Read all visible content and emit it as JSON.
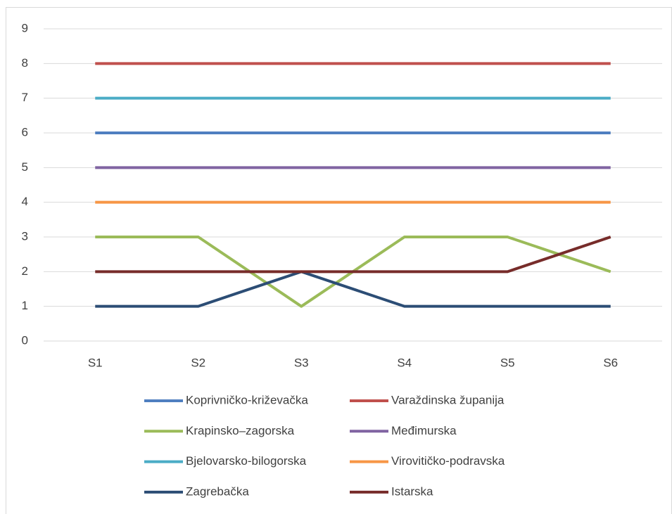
{
  "chart_data": {
    "type": "line",
    "categories": [
      "S1",
      "S2",
      "S3",
      "S4",
      "S5",
      "S6"
    ],
    "series": [
      {
        "name": "Koprivničko-križevačka",
        "color": "#4f7fc0",
        "values": [
          6,
          6,
          6,
          6,
          6,
          6
        ]
      },
      {
        "name": "Varaždinska županija",
        "color": "#c0504d",
        "values": [
          8,
          8,
          8,
          8,
          8,
          8
        ]
      },
      {
        "name": "Krapinsko–zagorska",
        "color": "#9bbb59",
        "values": [
          3,
          3,
          1,
          3,
          3,
          2
        ]
      },
      {
        "name": "Međimurska",
        "color": "#8064a2",
        "values": [
          5,
          5,
          5,
          5,
          5,
          5
        ]
      },
      {
        "name": "Bjelovarsko-bilogorska",
        "color": "#4bacc6",
        "values": [
          7,
          7,
          7,
          7,
          7,
          7
        ]
      },
      {
        "name": "Virovitičko-podravska",
        "color": "#f79646",
        "values": [
          4,
          4,
          4,
          4,
          4,
          4
        ]
      },
      {
        "name": "Zagrebačka",
        "color": "#2c4d75",
        "values": [
          1,
          1,
          2,
          1,
          1,
          1
        ]
      },
      {
        "name": "Istarska",
        "color": "#772c2a",
        "values": [
          2,
          2,
          2,
          2,
          2,
          3
        ]
      }
    ],
    "ylim": [
      0,
      9
    ],
    "yticks": [
      0,
      1,
      2,
      3,
      4,
      5,
      6,
      7,
      8,
      9
    ],
    "grid": true,
    "legend": "bottom"
  }
}
